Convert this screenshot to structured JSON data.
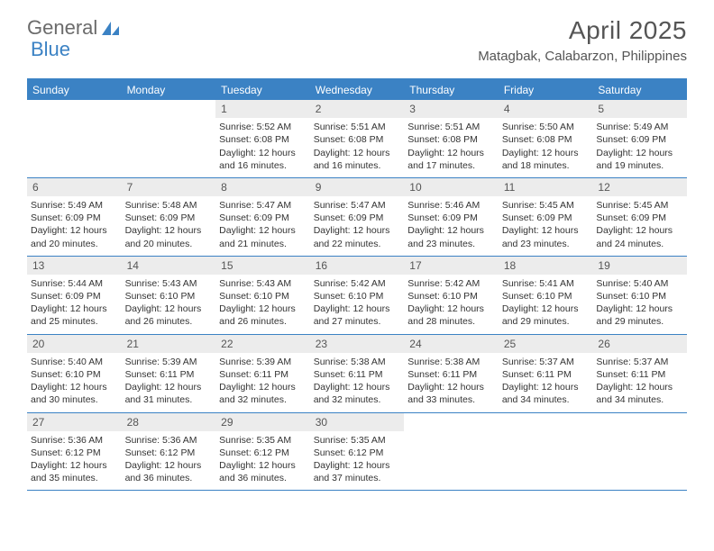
{
  "brand": {
    "part1": "General",
    "part2": "Blue"
  },
  "title": "April 2025",
  "location": "Matagbak, Calabarzon, Philippines",
  "colors": {
    "accent": "#3b82c4",
    "header_text": "#555555",
    "cell_bg": "#ececec",
    "body_text": "#333333"
  },
  "weekdays": [
    "Sunday",
    "Monday",
    "Tuesday",
    "Wednesday",
    "Thursday",
    "Friday",
    "Saturday"
  ],
  "weeks": [
    [
      null,
      null,
      {
        "n": "1",
        "sunrise": "5:52 AM",
        "sunset": "6:08 PM",
        "daylight": "12 hours and 16 minutes."
      },
      {
        "n": "2",
        "sunrise": "5:51 AM",
        "sunset": "6:08 PM",
        "daylight": "12 hours and 16 minutes."
      },
      {
        "n": "3",
        "sunrise": "5:51 AM",
        "sunset": "6:08 PM",
        "daylight": "12 hours and 17 minutes."
      },
      {
        "n": "4",
        "sunrise": "5:50 AM",
        "sunset": "6:08 PM",
        "daylight": "12 hours and 18 minutes."
      },
      {
        "n": "5",
        "sunrise": "5:49 AM",
        "sunset": "6:09 PM",
        "daylight": "12 hours and 19 minutes."
      }
    ],
    [
      {
        "n": "6",
        "sunrise": "5:49 AM",
        "sunset": "6:09 PM",
        "daylight": "12 hours and 20 minutes."
      },
      {
        "n": "7",
        "sunrise": "5:48 AM",
        "sunset": "6:09 PM",
        "daylight": "12 hours and 20 minutes."
      },
      {
        "n": "8",
        "sunrise": "5:47 AM",
        "sunset": "6:09 PM",
        "daylight": "12 hours and 21 minutes."
      },
      {
        "n": "9",
        "sunrise": "5:47 AM",
        "sunset": "6:09 PM",
        "daylight": "12 hours and 22 minutes."
      },
      {
        "n": "10",
        "sunrise": "5:46 AM",
        "sunset": "6:09 PM",
        "daylight": "12 hours and 23 minutes."
      },
      {
        "n": "11",
        "sunrise": "5:45 AM",
        "sunset": "6:09 PM",
        "daylight": "12 hours and 23 minutes."
      },
      {
        "n": "12",
        "sunrise": "5:45 AM",
        "sunset": "6:09 PM",
        "daylight": "12 hours and 24 minutes."
      }
    ],
    [
      {
        "n": "13",
        "sunrise": "5:44 AM",
        "sunset": "6:09 PM",
        "daylight": "12 hours and 25 minutes."
      },
      {
        "n": "14",
        "sunrise": "5:43 AM",
        "sunset": "6:10 PM",
        "daylight": "12 hours and 26 minutes."
      },
      {
        "n": "15",
        "sunrise": "5:43 AM",
        "sunset": "6:10 PM",
        "daylight": "12 hours and 26 minutes."
      },
      {
        "n": "16",
        "sunrise": "5:42 AM",
        "sunset": "6:10 PM",
        "daylight": "12 hours and 27 minutes."
      },
      {
        "n": "17",
        "sunrise": "5:42 AM",
        "sunset": "6:10 PM",
        "daylight": "12 hours and 28 minutes."
      },
      {
        "n": "18",
        "sunrise": "5:41 AM",
        "sunset": "6:10 PM",
        "daylight": "12 hours and 29 minutes."
      },
      {
        "n": "19",
        "sunrise": "5:40 AM",
        "sunset": "6:10 PM",
        "daylight": "12 hours and 29 minutes."
      }
    ],
    [
      {
        "n": "20",
        "sunrise": "5:40 AM",
        "sunset": "6:10 PM",
        "daylight": "12 hours and 30 minutes."
      },
      {
        "n": "21",
        "sunrise": "5:39 AM",
        "sunset": "6:11 PM",
        "daylight": "12 hours and 31 minutes."
      },
      {
        "n": "22",
        "sunrise": "5:39 AM",
        "sunset": "6:11 PM",
        "daylight": "12 hours and 32 minutes."
      },
      {
        "n": "23",
        "sunrise": "5:38 AM",
        "sunset": "6:11 PM",
        "daylight": "12 hours and 32 minutes."
      },
      {
        "n": "24",
        "sunrise": "5:38 AM",
        "sunset": "6:11 PM",
        "daylight": "12 hours and 33 minutes."
      },
      {
        "n": "25",
        "sunrise": "5:37 AM",
        "sunset": "6:11 PM",
        "daylight": "12 hours and 34 minutes."
      },
      {
        "n": "26",
        "sunrise": "5:37 AM",
        "sunset": "6:11 PM",
        "daylight": "12 hours and 34 minutes."
      }
    ],
    [
      {
        "n": "27",
        "sunrise": "5:36 AM",
        "sunset": "6:12 PM",
        "daylight": "12 hours and 35 minutes."
      },
      {
        "n": "28",
        "sunrise": "5:36 AM",
        "sunset": "6:12 PM",
        "daylight": "12 hours and 36 minutes."
      },
      {
        "n": "29",
        "sunrise": "5:35 AM",
        "sunset": "6:12 PM",
        "daylight": "12 hours and 36 minutes."
      },
      {
        "n": "30",
        "sunrise": "5:35 AM",
        "sunset": "6:12 PM",
        "daylight": "12 hours and 37 minutes."
      },
      null,
      null,
      null
    ]
  ],
  "labels": {
    "sunrise": "Sunrise:",
    "sunset": "Sunset:",
    "daylight": "Daylight:"
  }
}
